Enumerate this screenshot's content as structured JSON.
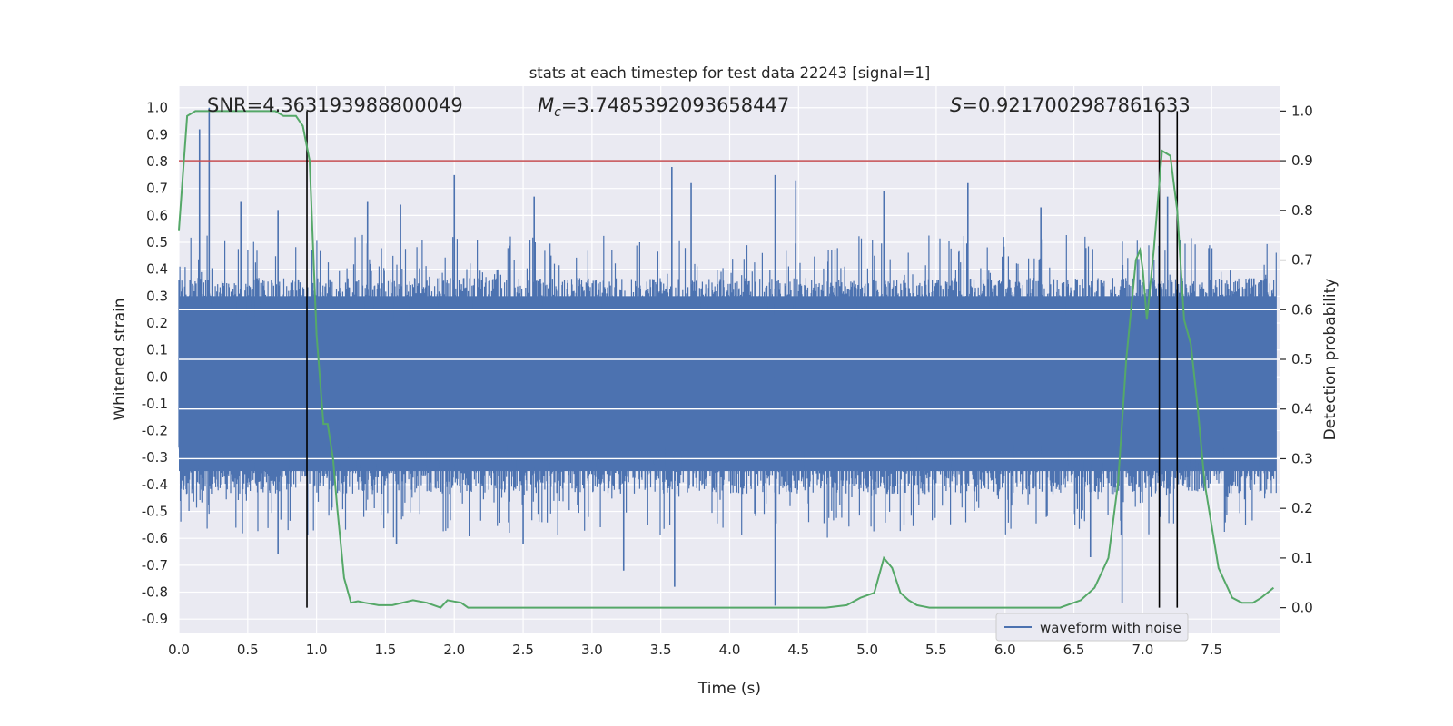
{
  "chart_data": {
    "type": "line",
    "title": "stats at each timestep for test data 22243 [signal=1]",
    "xlabel": "Time (s)",
    "ylabel": "Whitened strain",
    "y2label": "Detection probability",
    "xlim": [
      0.0,
      8.0
    ],
    "ylim": [
      -0.95,
      1.08
    ],
    "y2lim": [
      -0.05,
      1.05
    ],
    "xticks": [
      "0.0",
      "0.5",
      "1.0",
      "1.5",
      "2.0",
      "2.5",
      "3.0",
      "3.5",
      "4.0",
      "4.5",
      "5.0",
      "5.5",
      "6.0",
      "6.5",
      "7.0",
      "7.5"
    ],
    "yticks": [
      "1.0",
      "0.9",
      "0.8",
      "0.7",
      "0.6",
      "0.5",
      "0.4",
      "0.3",
      "0.2",
      "0.1",
      "0.0",
      "-0.1",
      "-0.2",
      "-0.3",
      "-0.4",
      "-0.5",
      "-0.6",
      "-0.7",
      "-0.8",
      "-0.9"
    ],
    "y2ticks": [
      "1.0",
      "0.9",
      "0.8",
      "0.7",
      "0.6",
      "0.5",
      "0.4",
      "0.3",
      "0.2",
      "0.1",
      "0.0"
    ],
    "annotations": {
      "snr": {
        "label": "SNR",
        "value": "=4.363193988800049"
      },
      "mc": {
        "label": "M",
        "sub": "c",
        "value": "=3.7485392093658447"
      },
      "s": {
        "label": "S",
        "value": "=0.9217002987861633"
      }
    },
    "legend": {
      "label": "waveform with noise",
      "position": "lower-right"
    },
    "threshold": {
      "y2": 0.9,
      "color": "#c44e52"
    },
    "vlines": [
      0.93,
      7.12,
      7.25
    ],
    "waveform": {
      "name": "waveform with noise",
      "color": "#4c72b0",
      "envelope_upper": 0.38,
      "envelope_lower": -0.45,
      "spikes": [
        {
          "x": 0.15,
          "y": 0.92
        },
        {
          "x": 0.22,
          "y": 1.0
        },
        {
          "x": 0.72,
          "y": 0.62
        },
        {
          "x": 0.45,
          "y": 0.65
        },
        {
          "x": 1.37,
          "y": 0.65
        },
        {
          "x": 1.61,
          "y": 0.64
        },
        {
          "x": 2.0,
          "y": 0.75
        },
        {
          "x": 2.58,
          "y": 0.67
        },
        {
          "x": 3.58,
          "y": 0.78
        },
        {
          "x": 3.72,
          "y": 0.72
        },
        {
          "x": 4.33,
          "y": 0.75
        },
        {
          "x": 4.48,
          "y": 0.73
        },
        {
          "x": 5.12,
          "y": 0.69
        },
        {
          "x": 5.73,
          "y": 0.72
        },
        {
          "x": 6.26,
          "y": 0.63
        },
        {
          "x": 7.18,
          "y": 0.67
        },
        {
          "x": 0.72,
          "y": -0.66
        },
        {
          "x": 1.58,
          "y": -0.62
        },
        {
          "x": 3.23,
          "y": -0.72
        },
        {
          "x": 3.6,
          "y": -0.78
        },
        {
          "x": 4.33,
          "y": -0.85
        },
        {
          "x": 6.85,
          "y": -0.84
        },
        {
          "x": 6.62,
          "y": -0.67
        },
        {
          "x": 2.5,
          "y": -0.62
        }
      ]
    },
    "probability": {
      "name": "detection probability",
      "color": "#55a868",
      "x": [
        0.0,
        0.06,
        0.12,
        0.2,
        0.4,
        0.7,
        0.76,
        0.85,
        0.9,
        0.95,
        1.0,
        1.05,
        1.08,
        1.12,
        1.15,
        1.2,
        1.25,
        1.3,
        1.35,
        1.45,
        1.55,
        1.7,
        1.8,
        1.9,
        1.95,
        2.05,
        2.1,
        2.15,
        2.2,
        2.3,
        2.5,
        3.0,
        3.5,
        4.0,
        4.5,
        4.7,
        4.85,
        4.95,
        5.05,
        5.12,
        5.18,
        5.24,
        5.3,
        5.36,
        5.45,
        5.6,
        6.0,
        6.4,
        6.55,
        6.65,
        6.75,
        6.82,
        6.88,
        6.95,
        6.98,
        7.0,
        7.03,
        7.08,
        7.14,
        7.2,
        7.25,
        7.3,
        7.35,
        7.4,
        7.45,
        7.55,
        7.65,
        7.72,
        7.8,
        7.86,
        7.95
      ],
      "y": [
        0.76,
        0.99,
        1.0,
        1.0,
        1.0,
        1.0,
        0.99,
        0.99,
        0.97,
        0.9,
        0.55,
        0.37,
        0.37,
        0.3,
        0.2,
        0.06,
        0.01,
        0.013,
        0.01,
        0.005,
        0.005,
        0.015,
        0.01,
        0.0,
        0.015,
        0.01,
        0.0,
        0.0,
        0.0,
        0.0,
        0.0,
        0.0,
        0.0,
        0.0,
        0.0,
        0.0,
        0.005,
        0.02,
        0.03,
        0.1,
        0.08,
        0.03,
        0.015,
        0.005,
        0.0,
        0.0,
        0.0,
        0.0,
        0.015,
        0.04,
        0.1,
        0.25,
        0.5,
        0.7,
        0.72,
        0.68,
        0.58,
        0.72,
        0.92,
        0.91,
        0.8,
        0.58,
        0.53,
        0.4,
        0.25,
        0.08,
        0.02,
        0.01,
        0.01,
        0.02,
        0.04
      ]
    }
  }
}
